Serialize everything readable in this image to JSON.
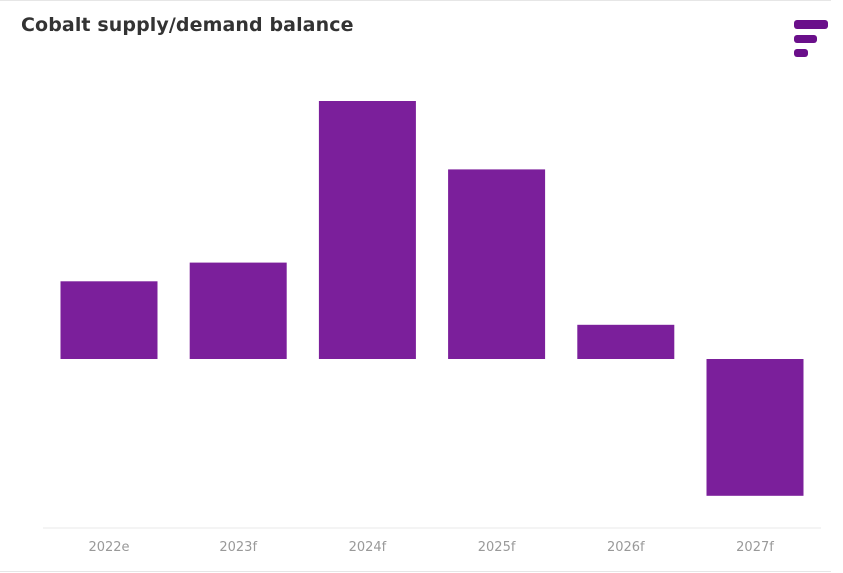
{
  "chart_data": {
    "type": "bar",
    "title": "Cobalt supply/demand balance",
    "categories": [
      "2022e",
      "2023f",
      "2024f",
      "2025f",
      "2026f",
      "2027f"
    ],
    "values": [
      25,
      31,
      83,
      61,
      11,
      -44
    ],
    "xlabel": "",
    "ylabel": "",
    "ylim": [
      -54,
      83
    ],
    "grid": false,
    "bar_color": "#7b1f9b"
  },
  "brand": {
    "icon": "brand-logo-icon",
    "color": "#6a0f8a"
  }
}
